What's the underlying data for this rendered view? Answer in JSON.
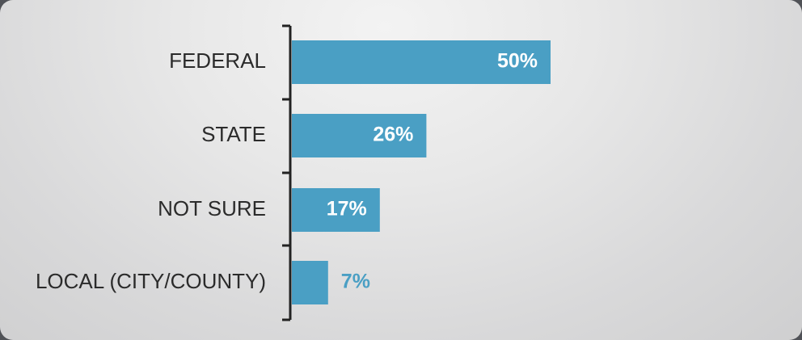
{
  "colors": {
    "bar": "#4a9fc4",
    "axis": "#222222",
    "label_inside": "#ffffff",
    "label_outside": "#4a9fc4"
  },
  "chart_data": {
    "type": "bar",
    "orientation": "horizontal",
    "categories": [
      "FEDERAL",
      "STATE",
      "NOT SURE",
      "LOCAL (CITY/COUNTY)"
    ],
    "values": [
      50,
      26,
      17,
      7
    ],
    "value_labels": [
      "50%",
      "26%",
      "17%",
      "7%"
    ],
    "unit": "%",
    "title": "",
    "xlabel": "",
    "ylabel": "",
    "xlim": [
      0,
      100
    ],
    "grid": false,
    "legend": "none"
  }
}
